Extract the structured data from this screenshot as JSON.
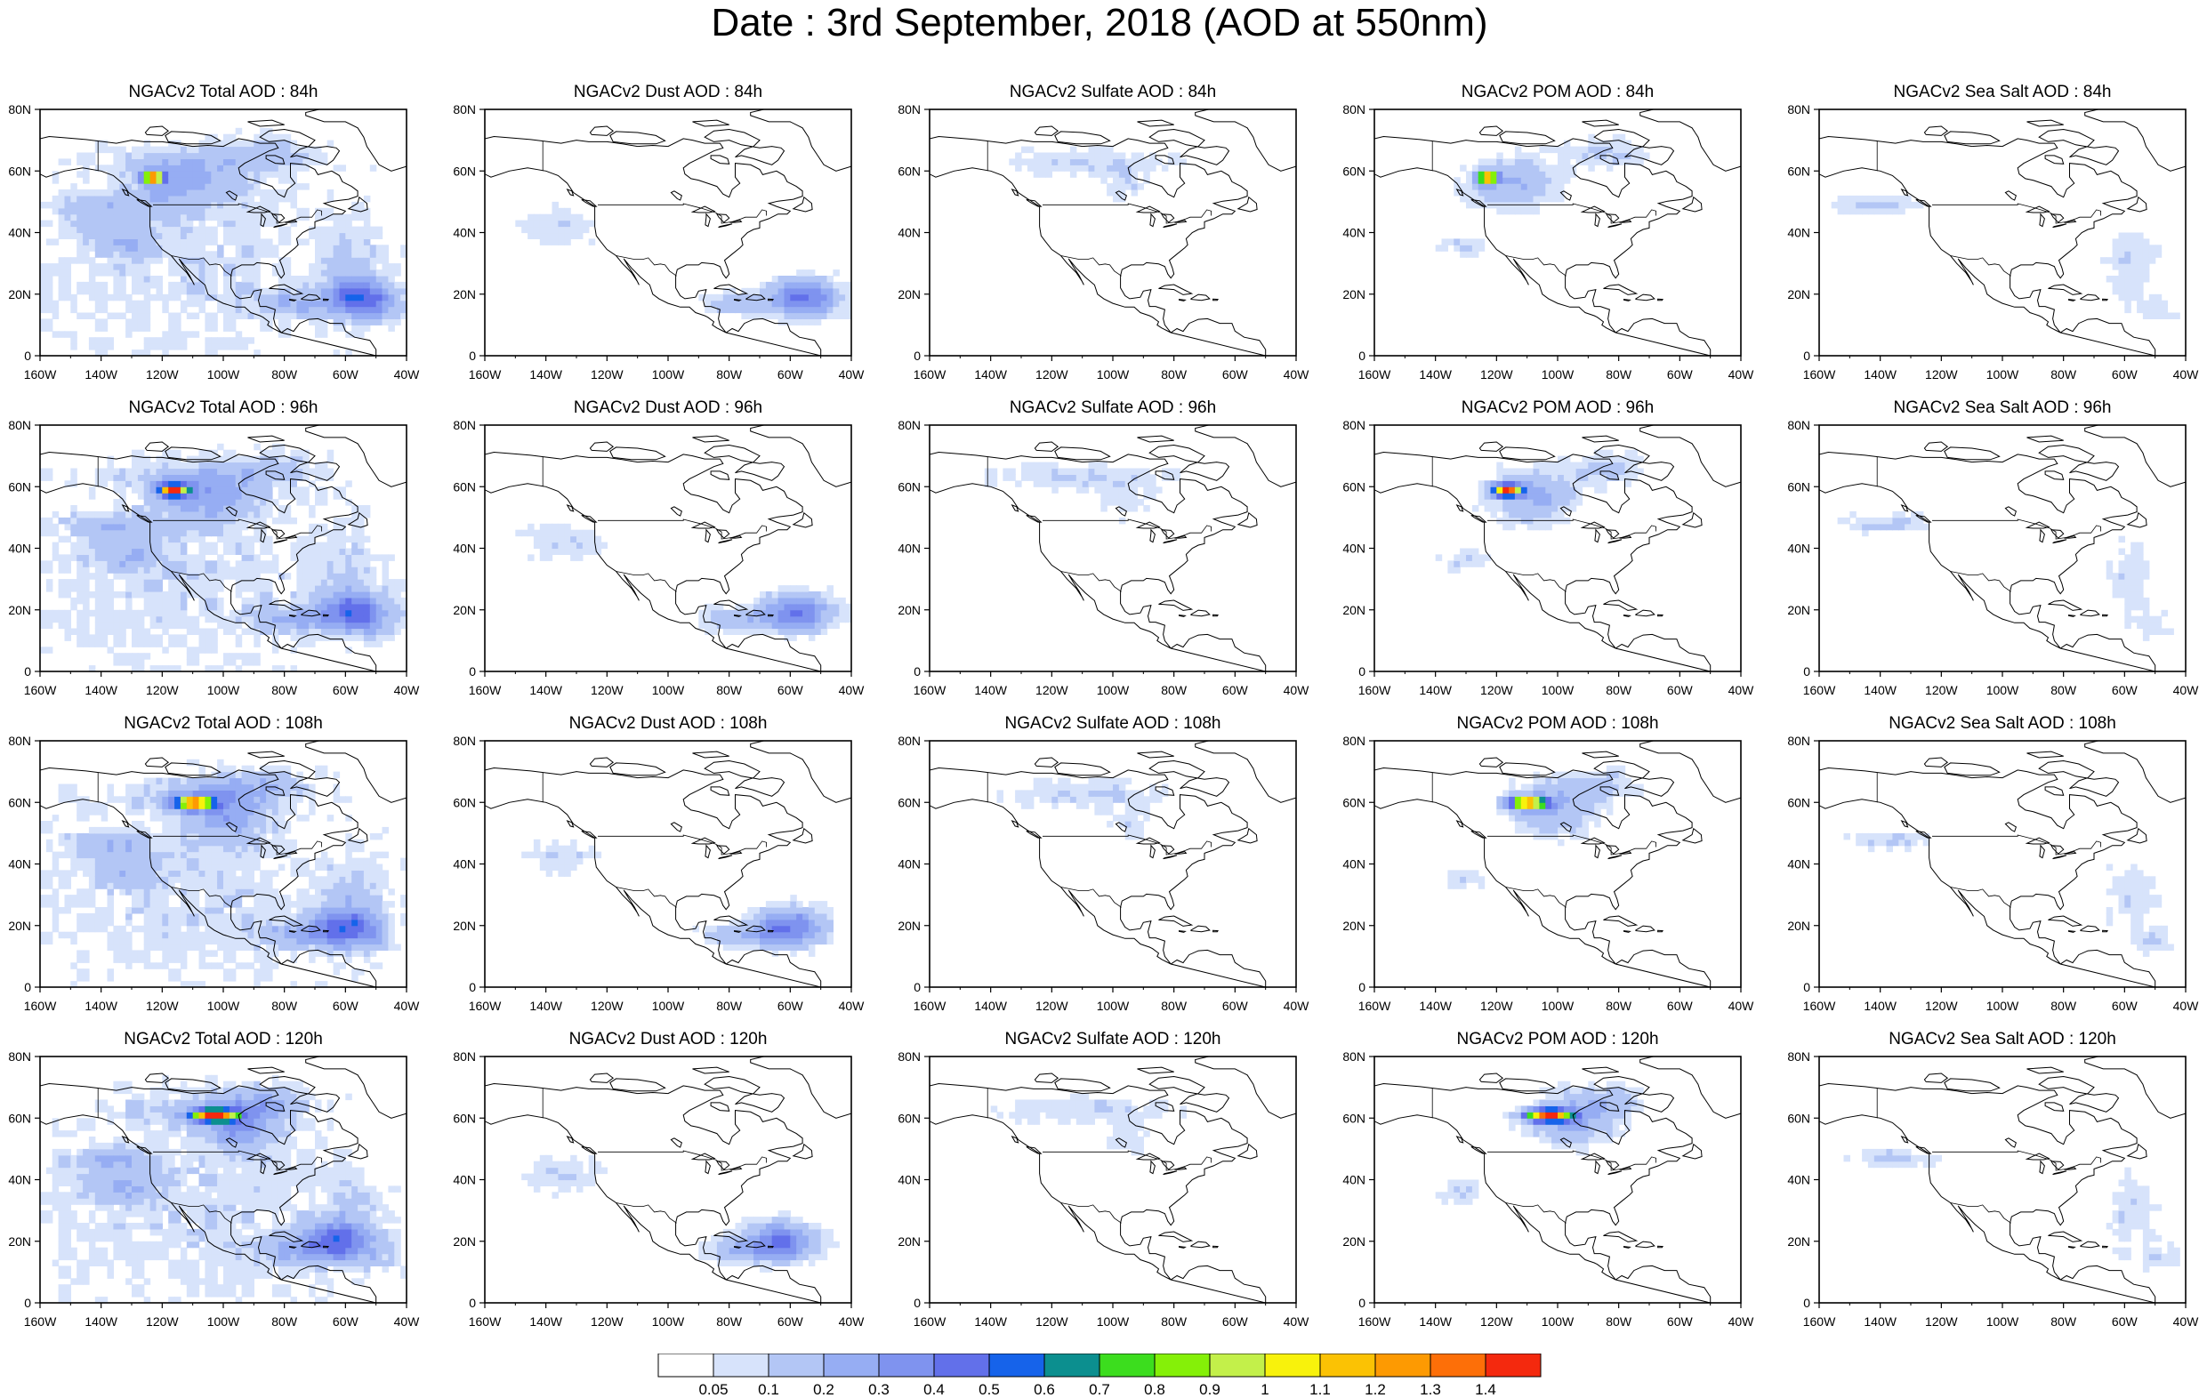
{
  "title": "Date : 3rd September, 2018 (AOD at 550nm)",
  "colorbar": {
    "colors": [
      "#ffffff",
      "#d7e3fb",
      "#b3c6f5",
      "#96adf3",
      "#7f93ef",
      "#6270ea",
      "#1663ea",
      "#0c8f8f",
      "#3cdd1e",
      "#85f008",
      "#c3f04a",
      "#f8f20c",
      "#fbc204",
      "#fd9a02",
      "#fd6f08",
      "#f4290e"
    ],
    "labels": [
      "0.05",
      "0.1",
      "0.2",
      "0.3",
      "0.4",
      "0.5",
      "0.6",
      "0.7",
      "0.8",
      "0.9",
      "1",
      "1.1",
      "1.2",
      "1.3",
      "1.4"
    ]
  },
  "axes": {
    "lon_ticks": [
      "160W",
      "140W",
      "120W",
      "100W",
      "80W",
      "60W",
      "40W"
    ],
    "lat_ticks": [
      "80N",
      "60N",
      "40N",
      "20N",
      "0"
    ],
    "lon_range": [
      -160,
      -40
    ],
    "lat_range": [
      0,
      80
    ]
  },
  "panels": [
    [
      {
        "title": "NGACv2 Total AOD : 84h",
        "species": "total",
        "hour": 84
      },
      {
        "title": "NGACv2 Dust AOD : 84h",
        "species": "dust",
        "hour": 84
      },
      {
        "title": "NGACv2 Sulfate AOD : 84h",
        "species": "sulfate",
        "hour": 84
      },
      {
        "title": "NGACv2 POM AOD : 84h",
        "species": "pom",
        "hour": 84
      },
      {
        "title": "NGACv2 Sea Salt AOD : 84h",
        "species": "seasalt",
        "hour": 84
      }
    ],
    [
      {
        "title": "NGACv2 Total AOD : 96h",
        "species": "total",
        "hour": 96
      },
      {
        "title": "NGACv2 Dust AOD : 96h",
        "species": "dust",
        "hour": 96
      },
      {
        "title": "NGACv2 Sulfate AOD : 96h",
        "species": "sulfate",
        "hour": 96
      },
      {
        "title": "NGACv2 POM AOD : 96h",
        "species": "pom",
        "hour": 96
      },
      {
        "title": "NGACv2 Sea Salt AOD : 96h",
        "species": "seasalt",
        "hour": 96
      }
    ],
    [
      {
        "title": "NGACv2 Total AOD : 108h",
        "species": "total",
        "hour": 108
      },
      {
        "title": "NGACv2 Dust AOD : 108h",
        "species": "dust",
        "hour": 108
      },
      {
        "title": "NGACv2 Sulfate AOD : 108h",
        "species": "sulfate",
        "hour": 108
      },
      {
        "title": "NGACv2 POM AOD : 108h",
        "species": "pom",
        "hour": 108
      },
      {
        "title": "NGACv2 Sea Salt AOD : 108h",
        "species": "seasalt",
        "hour": 108
      }
    ],
    [
      {
        "title": "NGACv2 Total AOD : 120h",
        "species": "total",
        "hour": 120
      },
      {
        "title": "NGACv2 Dust AOD : 120h",
        "species": "dust",
        "hour": 120
      },
      {
        "title": "NGACv2 Sulfate AOD : 120h",
        "species": "sulfate",
        "hour": 120
      },
      {
        "title": "NGACv2 POM AOD : 120h",
        "species": "pom",
        "hour": 120
      },
      {
        "title": "NGACv2 Sea Salt  AOD : 120h",
        "species": "seasalt",
        "hour": 120
      }
    ]
  ]
}
